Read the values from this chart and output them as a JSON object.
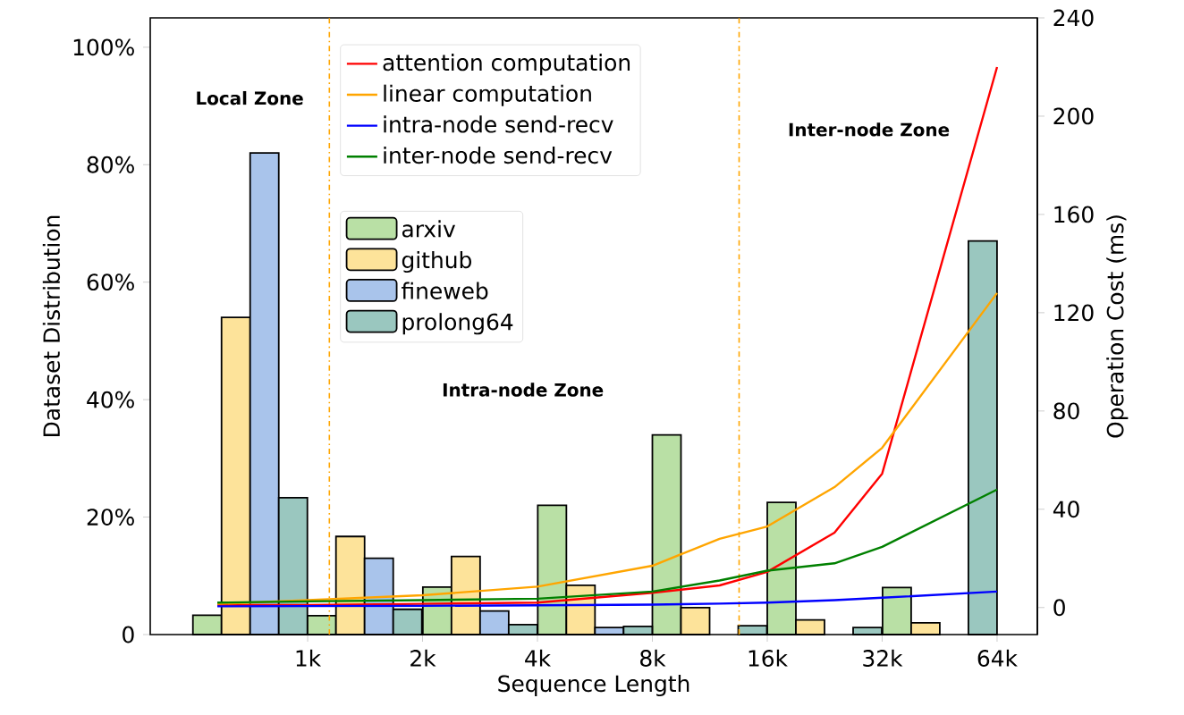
{
  "chart_data": {
    "type": "bar",
    "xlabel": "Sequence Length",
    "ylabel": "Dataset Distribution",
    "y2label": "Operation Cost (ms)",
    "log": "x",
    "xlim": [
      0.387,
      81.6
    ],
    "xticks": [
      {
        "value": 1,
        "label": "1k"
      },
      {
        "value": 2,
        "label": "2k"
      },
      {
        "value": 4,
        "label": "4k"
      },
      {
        "value": 8,
        "label": "8k"
      },
      {
        "value": 16,
        "label": "16k"
      },
      {
        "value": 32,
        "label": "32k"
      },
      {
        "value": 64,
        "label": "64k"
      }
    ],
    "ylim": [
      0,
      105
    ],
    "yticks": [
      0,
      {
        "value": 20,
        "label": "20%"
      },
      {
        "value": 40,
        "label": "40%"
      },
      {
        "value": 60,
        "label": "60%"
      },
      {
        "value": 80,
        "label": "80%"
      },
      {
        "value": 100,
        "label": "100%"
      }
    ],
    "y2lim": [
      -11,
      240
    ],
    "y2ticks": [
      0,
      40,
      80,
      120,
      160,
      200,
      240
    ],
    "legend": "top",
    "series": [
      {
        "name": "attention computation",
        "type": "line",
        "axis": "y2",
        "color": "#ff0000",
        "x": [
          0.58,
          1,
          2,
          4,
          8,
          12,
          16,
          24,
          32,
          64
        ],
        "values": [
          1,
          1,
          1.5,
          2,
          6,
          9,
          14.5,
          30.5,
          54.5,
          220
        ]
      },
      {
        "name": "linear computation",
        "type": "line",
        "axis": "y2",
        "color": "#ffa500",
        "x": [
          0.58,
          1,
          2,
          4,
          8,
          12,
          16,
          24,
          32,
          64
        ],
        "values": [
          1.5,
          3,
          5,
          8.5,
          17,
          28,
          33,
          49,
          65,
          128
        ]
      },
      {
        "name": "intra-node send-recv",
        "type": "line",
        "axis": "y2",
        "color": "#0000ff",
        "x": [
          0.58,
          1,
          2,
          4,
          8,
          12,
          16,
          24,
          32,
          64
        ],
        "values": [
          0.5,
          0.6,
          0.7,
          0.9,
          1.2,
          1.6,
          2,
          3,
          4,
          6.5
        ]
      },
      {
        "name": "inter-node send-recv",
        "type": "line",
        "axis": "y2",
        "color": "#008000",
        "x": [
          0.58,
          1,
          2,
          4,
          8,
          12,
          16,
          24,
          32,
          64
        ],
        "values": [
          2,
          2.5,
          3,
          3.6,
          6.5,
          11,
          15,
          18,
          24.7,
          48
        ]
      },
      {
        "name": "arxiv",
        "color": "#b9e0a5",
        "x": [
          0.707,
          1.41,
          2.83,
          5.66,
          11.3,
          22.6,
          45.3
        ],
        "values": [
          3.3,
          3.2,
          8.1,
          22,
          34,
          22.5,
          8
        ]
      },
      {
        "name": "github",
        "color": "#fde39a",
        "x": [
          0.707,
          1.41,
          2.83,
          5.66,
          11.3,
          22.6,
          45.3
        ],
        "values": [
          54,
          16.7,
          13.3,
          8.4,
          4.6,
          2.5,
          2
        ]
      },
      {
        "name": "fineweb",
        "color": "#a9c4eb",
        "x": [
          0.707,
          1.41,
          2.83,
          5.66
        ],
        "values": [
          82,
          13,
          4,
          1.2
        ]
      },
      {
        "name": "prolong64",
        "color": "#9ac7bf",
        "x": [
          0.707,
          1.41,
          2.83,
          5.66,
          11.3,
          22.6,
          45.3
        ],
        "values": [
          23.3,
          4.3,
          1.7,
          1.4,
          1.5,
          1.2,
          67
        ]
      }
    ],
    "ref_lines": [
      {
        "axis": "x",
        "value": 1.14,
        "color": "#ffa500",
        "line_style": "dashdot"
      },
      {
        "axis": "x",
        "value": 13.5,
        "color": "#ffa500",
        "line_style": "dashdot"
      }
    ],
    "annotations": [
      "Local Zone",
      "Intra-node Zone",
      "Inter-node Zone"
    ]
  }
}
